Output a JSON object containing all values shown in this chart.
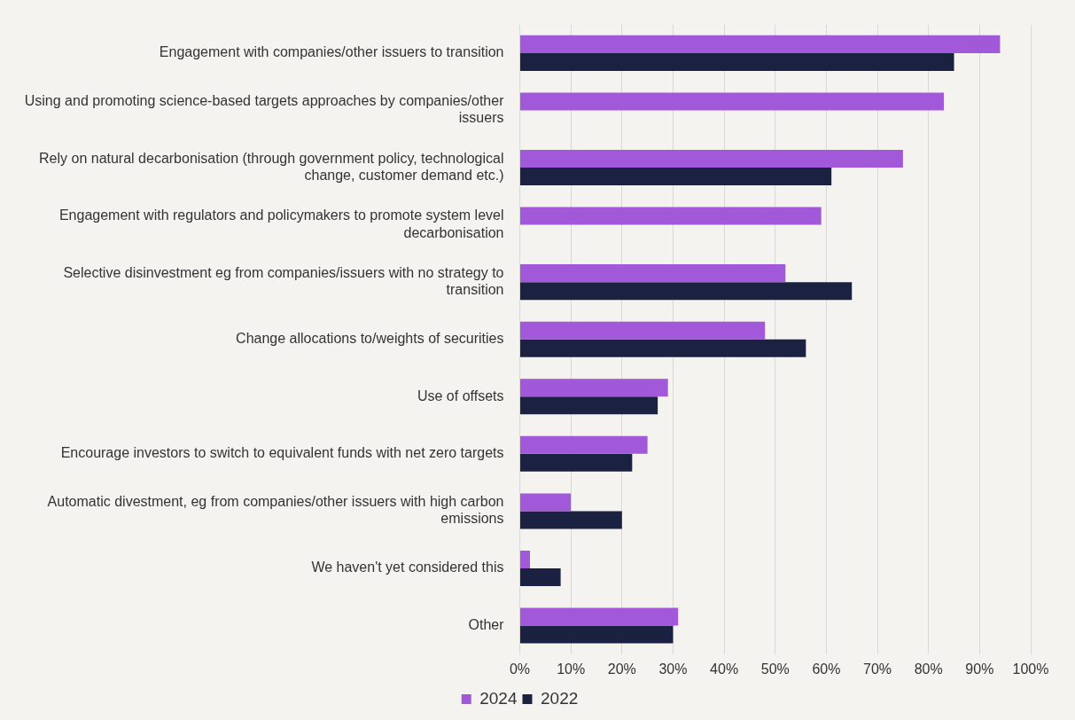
{
  "chart_data": {
    "type": "bar",
    "orientation": "horizontal",
    "categories": [
      "Engagement with companies/other issuers to transition",
      "Using and promoting science-based targets approaches by companies/other issuers",
      "Rely on natural decarbonisation (through government policy, technological change, customer demand etc.)",
      "Engagement with regulators and policymakers to promote system level decarbonisation",
      "Selective disinvestment eg from companies/issuers with no strategy to transition",
      "Change allocations to/weights of securities",
      "Use of offsets",
      "Encourage investors to switch to equivalent funds with net zero targets",
      "Automatic divestment, eg from companies/other issuers with high carbon emissions",
      "We haven't yet considered this",
      "Other"
    ],
    "series": [
      {
        "name": "2024",
        "color": "#a259d9",
        "values": [
          94,
          83,
          75,
          59,
          52,
          48,
          29,
          25,
          10,
          2,
          31
        ]
      },
      {
        "name": "2022",
        "color": "#1b2140",
        "values": [
          85,
          null,
          61,
          null,
          65,
          56,
          27,
          22,
          20,
          8,
          30
        ]
      }
    ],
    "xlim": [
      0,
      100
    ],
    "xticks": [
      {
        "value": 0,
        "label": "0%"
      },
      {
        "value": 10,
        "label": "10%"
      },
      {
        "value": 20,
        "label": "20%"
      },
      {
        "value": 30,
        "label": "30%"
      },
      {
        "value": 40,
        "label": "40%"
      },
      {
        "value": 50,
        "label": "50%"
      },
      {
        "value": 60,
        "label": "60%"
      },
      {
        "value": 70,
        "label": "70%"
      },
      {
        "value": 80,
        "label": "80%"
      },
      {
        "value": 90,
        "label": "90%"
      },
      {
        "value": 100,
        "label": "100%"
      }
    ],
    "grid": "x",
    "legend": "bottom"
  }
}
